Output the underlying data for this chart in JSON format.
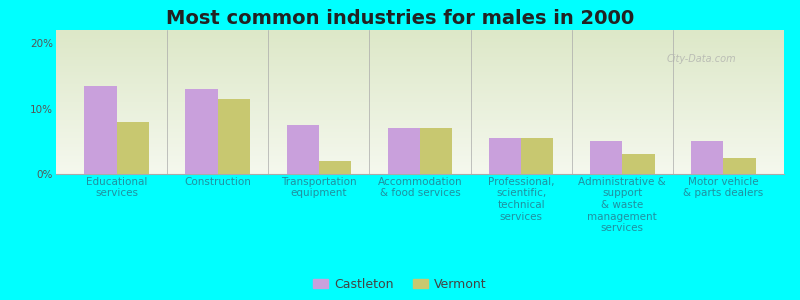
{
  "title": "Most common industries for males in 2000",
  "background_color": "#00FFFF",
  "plot_bg_color_top": "#dde8c8",
  "plot_bg_color_bottom": "#f5f8ee",
  "categories": [
    "Educational\nservices",
    "Construction",
    "Transportation\nequipment",
    "Accommodation\n& food services",
    "Professional,\nscientific,\ntechnical\nservices",
    "Administrative &\nsupport\n& waste\nmanagement\nservices",
    "Motor vehicle\n& parts dealers"
  ],
  "castleton_values": [
    13.5,
    13.0,
    7.5,
    7.0,
    5.5,
    5.0,
    5.0
  ],
  "vermont_values": [
    8.0,
    11.5,
    2.0,
    7.0,
    5.5,
    3.0,
    2.5
  ],
  "castleton_color": "#c9a0dc",
  "vermont_color": "#c8c870",
  "ylim": [
    0,
    22
  ],
  "yticks": [
    0,
    10,
    20
  ],
  "ytick_labels": [
    "0%",
    "10%",
    "20%"
  ],
  "legend_labels": [
    "Castleton",
    "Vermont"
  ],
  "title_fontsize": 14,
  "tick_fontsize": 7.5,
  "legend_fontsize": 9,
  "bar_width": 0.32
}
